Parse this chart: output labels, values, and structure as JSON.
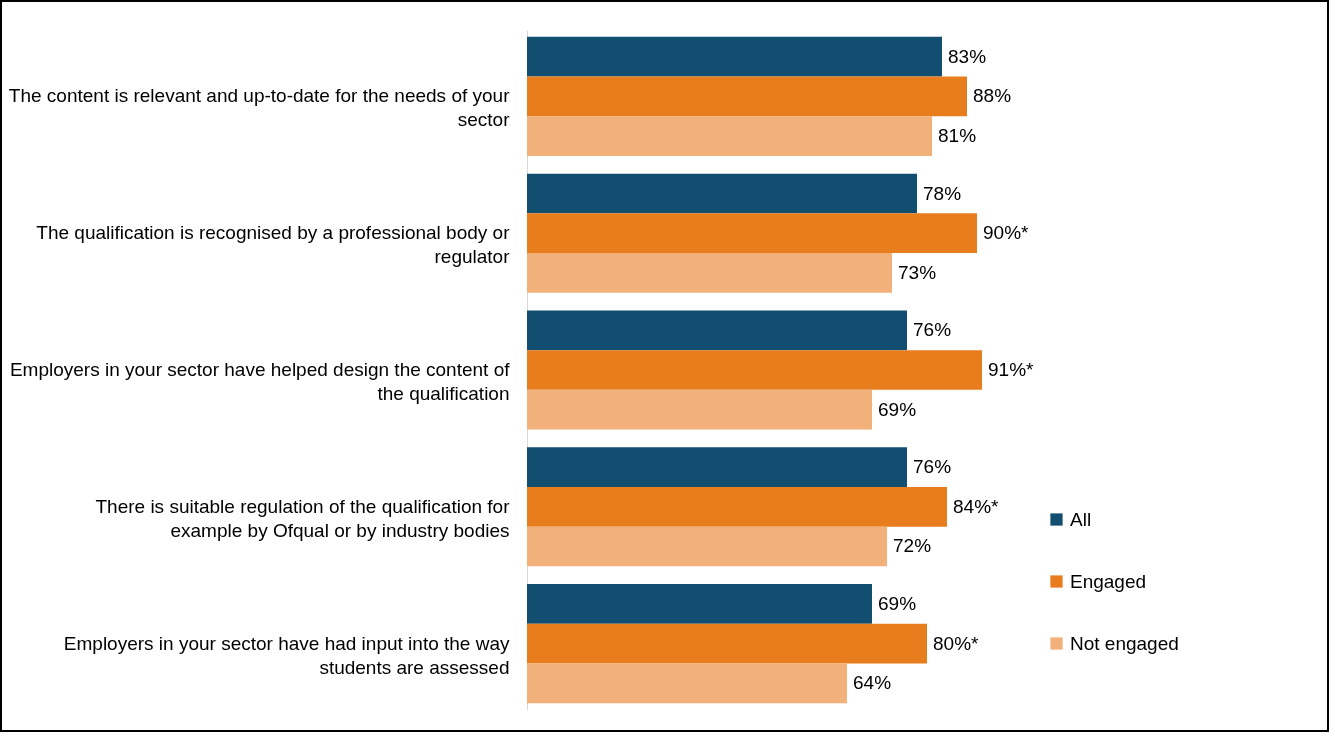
{
  "chart_data": {
    "type": "bar",
    "orientation": "horizontal",
    "categories": [
      "The content is relevant and up-to-date for the needs of your sector",
      "The qualification is recognised by a professional body or regulator",
      "Employers in your sector have helped design the content of the qualification",
      "There is suitable regulation of the qualification for example by Ofqual or by industry bodies",
      "Employers in your sector have had input into the way students are assessed"
    ],
    "series": [
      {
        "name": "All",
        "color": "#124e70",
        "values": [
          83,
          78,
          76,
          76,
          69
        ],
        "value_labels": [
          "83%",
          "78%",
          "76%",
          "76%",
          "69%"
        ]
      },
      {
        "name": "Engaged",
        "color": "#e87d1e",
        "values": [
          88,
          90,
          91,
          84,
          80
        ],
        "value_labels": [
          "88%",
          "90%*",
          "91%*",
          "84%*",
          "80%*"
        ]
      },
      {
        "name": "Not engaged",
        "color": "#f2b17a",
        "values": [
          81,
          73,
          69,
          72,
          64
        ],
        "value_labels": [
          "81%",
          "73%",
          "69%",
          "72%",
          "64%"
        ]
      }
    ],
    "legend": "right"
  }
}
